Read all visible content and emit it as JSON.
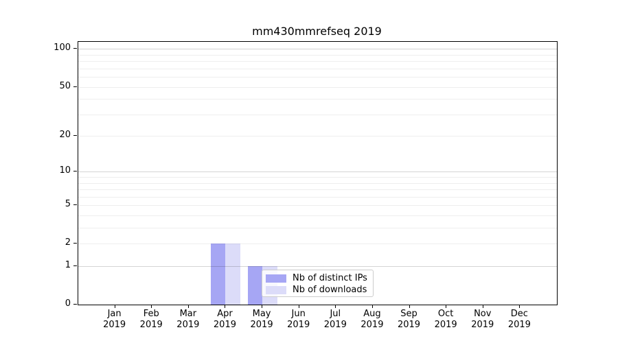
{
  "chart_data": {
    "type": "bar",
    "title": "mm430mmrefseq 2019",
    "categories": [
      "Jan",
      "Feb",
      "Mar",
      "Apr",
      "May",
      "Jun",
      "Jul",
      "Aug",
      "Sep",
      "Oct",
      "Nov",
      "Dec"
    ],
    "category_year": "2019",
    "series": [
      {
        "name": "Nb of distinct IPs",
        "color": "#a6a6f4",
        "values": [
          0,
          0,
          0,
          2,
          1,
          0,
          0,
          0,
          0,
          0,
          0,
          0
        ]
      },
      {
        "name": "Nb of downloads",
        "color": "#dcdcf9",
        "values": [
          0,
          0,
          0,
          2,
          1,
          0,
          0,
          0,
          0,
          0,
          0,
          0
        ]
      }
    ],
    "y_scale": "log1p",
    "ylim": [
      0,
      114
    ],
    "y_tick_values": [
      0,
      1,
      2,
      5,
      10,
      20,
      50,
      100
    ],
    "y_gridlines_decade": [
      1,
      10,
      100
    ],
    "y_gridlines_minor": [
      2,
      3,
      4,
      5,
      6,
      7,
      8,
      9,
      20,
      30,
      40,
      50,
      60,
      70,
      80,
      90
    ],
    "grid": true,
    "legend_position": "lower center-left"
  }
}
